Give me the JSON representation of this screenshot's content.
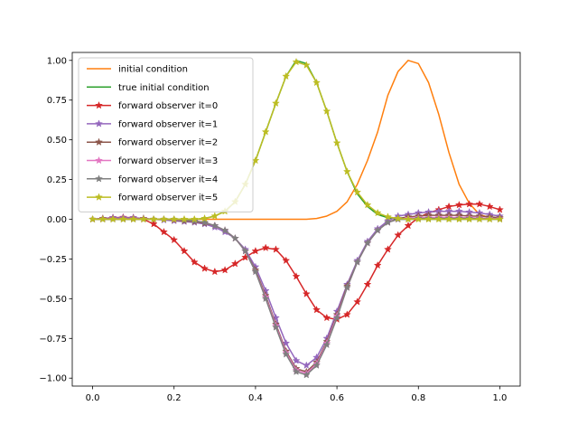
{
  "chart_data": {
    "type": "line",
    "title": "",
    "xlabel": "",
    "ylabel": "",
    "xlim": [
      -0.05,
      1.05
    ],
    "ylim": [
      -1.05,
      1.05
    ],
    "xticks": [
      0.0,
      0.2,
      0.4,
      0.6,
      0.8,
      1.0
    ],
    "xtick_labels": [
      "0.0",
      "0.2",
      "0.4",
      "0.6",
      "0.8",
      "1.0"
    ],
    "yticks": [
      1.0,
      0.75,
      0.5,
      0.25,
      0.0,
      -0.25,
      -0.5,
      -0.75,
      -1.0
    ],
    "ytick_labels": [
      "1.00",
      "0.75",
      "0.50",
      "0.25",
      "0.00",
      "−0.25",
      "−0.50",
      "−0.75",
      "−1.00"
    ],
    "grid": false,
    "legend_position": "upper left",
    "x": [
      0.0,
      0.025,
      0.05,
      0.075,
      0.1,
      0.125,
      0.15,
      0.175,
      0.2,
      0.225,
      0.25,
      0.275,
      0.3,
      0.325,
      0.35,
      0.375,
      0.4,
      0.425,
      0.45,
      0.475,
      0.5,
      0.525,
      0.55,
      0.575,
      0.6,
      0.625,
      0.65,
      0.675,
      0.7,
      0.725,
      0.75,
      0.775,
      0.8,
      0.825,
      0.85,
      0.875,
      0.9,
      0.925,
      0.95,
      0.975,
      1.0
    ],
    "series": [
      {
        "name": "initial condition",
        "color": "#ff7f0e",
        "marker": "none",
        "values": [
          0,
          0,
          0,
          0,
          0,
          0,
          0,
          0,
          0,
          0,
          0,
          0,
          0,
          0,
          0,
          0,
          0,
          0,
          0,
          0,
          0,
          0,
          0.005,
          0.02,
          0.05,
          0.11,
          0.22,
          0.37,
          0.55,
          0.78,
          0.93,
          1.0,
          0.98,
          0.86,
          0.66,
          0.42,
          0.22,
          0.1,
          0.03,
          0.01,
          0
        ]
      },
      {
        "name": "true initial condition",
        "color": "#2ca02c",
        "marker": "none",
        "values": [
          0,
          0,
          0,
          0,
          0,
          0,
          0,
          0,
          0,
          0,
          0,
          0.005,
          0.02,
          0.05,
          0.11,
          0.22,
          0.37,
          0.55,
          0.73,
          0.9,
          1.0,
          0.98,
          0.86,
          0.68,
          0.48,
          0.3,
          0.16,
          0.08,
          0.03,
          0.01,
          0,
          0,
          0,
          0,
          0,
          0,
          0,
          0,
          0,
          0,
          0
        ]
      },
      {
        "name": "forward observer it=0",
        "color": "#d62728",
        "marker": "star",
        "values": [
          0,
          0.005,
          0.01,
          0.012,
          0.01,
          0,
          -0.03,
          -0.08,
          -0.13,
          -0.2,
          -0.27,
          -0.31,
          -0.33,
          -0.32,
          -0.28,
          -0.24,
          -0.2,
          -0.18,
          -0.19,
          -0.26,
          -0.36,
          -0.47,
          -0.57,
          -0.62,
          -0.63,
          -0.6,
          -0.52,
          -0.41,
          -0.29,
          -0.19,
          -0.1,
          -0.04,
          0.01,
          0.04,
          0.06,
          0.08,
          0.09,
          0.095,
          0.095,
          0.08,
          0.06
        ]
      },
      {
        "name": "forward observer it=1",
        "color": "#9467bd",
        "marker": "star",
        "values": [
          0,
          0.005,
          0.01,
          0.01,
          0.01,
          0.005,
          0,
          -0.005,
          -0.01,
          -0.015,
          -0.02,
          -0.03,
          -0.05,
          -0.08,
          -0.12,
          -0.19,
          -0.3,
          -0.45,
          -0.62,
          -0.78,
          -0.89,
          -0.92,
          -0.87,
          -0.75,
          -0.58,
          -0.41,
          -0.26,
          -0.14,
          -0.06,
          -0.01,
          0.02,
          0.03,
          0.04,
          0.045,
          0.05,
          0.05,
          0.05,
          0.045,
          0.04,
          0.03,
          0.02
        ]
      },
      {
        "name": "forward observer it=2",
        "color": "#8c564b",
        "marker": "star",
        "values": [
          0,
          0.005,
          0.005,
          0.005,
          0.005,
          0.005,
          0,
          0,
          -0.005,
          -0.01,
          -0.015,
          -0.025,
          -0.04,
          -0.07,
          -0.12,
          -0.2,
          -0.32,
          -0.48,
          -0.66,
          -0.83,
          -0.94,
          -0.96,
          -0.9,
          -0.77,
          -0.6,
          -0.42,
          -0.27,
          -0.15,
          -0.07,
          -0.02,
          0.005,
          0.015,
          0.02,
          0.025,
          0.025,
          0.025,
          0.025,
          0.02,
          0.02,
          0.015,
          0.01
        ]
      },
      {
        "name": "forward observer it=3",
        "color": "#e377c2",
        "marker": "star",
        "values": [
          0,
          0.002,
          0.003,
          0.003,
          0.003,
          0.002,
          0,
          0,
          -0.002,
          -0.005,
          -0.01,
          -0.02,
          -0.04,
          -0.07,
          -0.12,
          -0.2,
          -0.33,
          -0.49,
          -0.67,
          -0.84,
          -0.95,
          -0.97,
          -0.91,
          -0.78,
          -0.61,
          -0.43,
          -0.27,
          -0.15,
          -0.07,
          -0.02,
          0,
          0.005,
          0.01,
          0.01,
          0.012,
          0.012,
          0.01,
          0.01,
          0.008,
          0.005,
          0.003
        ]
      },
      {
        "name": "forward observer it=4",
        "color": "#7f7f7f",
        "marker": "star",
        "values": [
          0,
          0,
          0,
          0,
          0,
          0,
          0,
          0,
          0,
          -0.005,
          -0.01,
          -0.02,
          -0.04,
          -0.07,
          -0.12,
          -0.2,
          -0.33,
          -0.5,
          -0.68,
          -0.85,
          -0.96,
          -0.98,
          -0.92,
          -0.79,
          -0.62,
          -0.43,
          -0.27,
          -0.15,
          -0.07,
          -0.02,
          0,
          0,
          0.005,
          0.005,
          0.005,
          0.005,
          0.005,
          0.005,
          0.003,
          0.002,
          0
        ]
      },
      {
        "name": "forward observer it=5",
        "color": "#bcbd22",
        "marker": "star",
        "values": [
          0,
          0,
          0,
          0,
          0,
          0,
          0,
          0,
          0,
          0,
          0,
          0.005,
          0.02,
          0.05,
          0.11,
          0.22,
          0.37,
          0.55,
          0.73,
          0.9,
          0.99,
          0.97,
          0.86,
          0.68,
          0.48,
          0.3,
          0.17,
          0.09,
          0.04,
          0.015,
          0.005,
          0,
          0,
          0,
          0,
          0,
          0,
          0,
          0,
          0,
          0
        ]
      }
    ]
  }
}
